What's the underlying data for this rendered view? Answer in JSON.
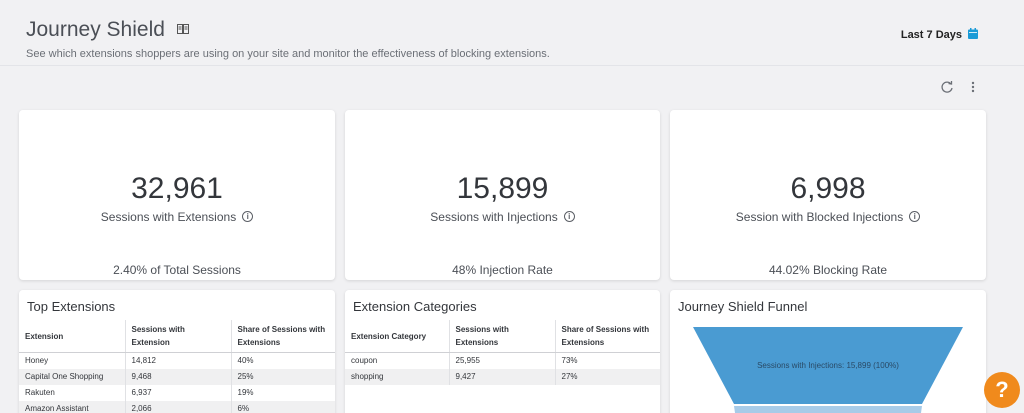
{
  "header": {
    "title": "Journey Shield",
    "subtitle": "See which extensions shoppers are using on your site and monitor the effectiveness of blocking extensions.",
    "date_range": "Last 7 Days"
  },
  "kpis": [
    {
      "value": "32,961",
      "label": "Sessions with Extensions",
      "footer": "2.40% of Total Sessions"
    },
    {
      "value": "15,899",
      "label": "Sessions with Injections",
      "footer": "48% Injection Rate"
    },
    {
      "value": "6,998",
      "label": "Session with Blocked Injections",
      "footer": "44.02% Blocking Rate"
    }
  ],
  "top_extensions": {
    "title": "Top Extensions",
    "columns": [
      "Extension",
      "Sessions with Extension",
      "Share of Sessions with Extensions"
    ],
    "rows": [
      [
        "Honey",
        "14,812",
        "40%"
      ],
      [
        "Capital One Shopping",
        "9,468",
        "25%"
      ],
      [
        "Rakuten",
        "6,937",
        "19%"
      ],
      [
        "Amazon Assistant",
        "2,066",
        "6%"
      ]
    ]
  },
  "extension_categories": {
    "title": "Extension Categories",
    "columns": [
      "Extension Category",
      "Sessions with Extensions",
      "Share of Sessions with Extensions"
    ],
    "rows": [
      [
        "coupon",
        "25,955",
        "73%"
      ],
      [
        "shopping",
        "9,427",
        "27%"
      ]
    ]
  },
  "funnel": {
    "title": "Journey Shield Funnel",
    "stage_label": "Sessions with Injections: 15,899 (100%)",
    "color_top": "#4a9bd2",
    "color_next": "#a7cbe8"
  },
  "help": {
    "label": "?"
  },
  "colors": {
    "accent": "#1a9bd7",
    "help": "#f08a1c"
  }
}
